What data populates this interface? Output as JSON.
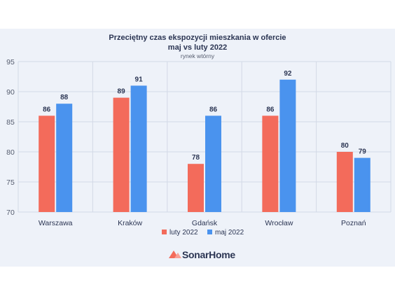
{
  "chart_data": {
    "type": "bar",
    "title_line1": "Przeciętny czas ekspozycji mieszkania w ofercie",
    "title_line2": "maj vs luty 2022",
    "subtitle": "rynek wtórny",
    "categories": [
      "Warszawa",
      "Kraków",
      "Gdańsk",
      "Wrocław",
      "Poznań"
    ],
    "series": [
      {
        "name": "luty 2022",
        "values": [
          86,
          89,
          78,
          86,
          80
        ],
        "labels": [
          "86",
          "89",
          "78",
          "86",
          "80"
        ],
        "color": "#f36b5b"
      },
      {
        "name": "maj 2022",
        "values": [
          88,
          91,
          86,
          92,
          79
        ],
        "labels": [
          "88",
          "91",
          "86",
          "92",
          "79"
        ],
        "color": "#4a93ee"
      }
    ],
    "ylim": [
      70,
      95
    ],
    "yticks": [
      "70",
      "75",
      "80",
      "85",
      "90",
      "95"
    ],
    "grid": true,
    "legend_position": "bottom-center"
  },
  "brand": {
    "name": "SonarHome",
    "logo_icon": "sonarhome-logo-icon",
    "logo_color": "#f36b5b"
  }
}
